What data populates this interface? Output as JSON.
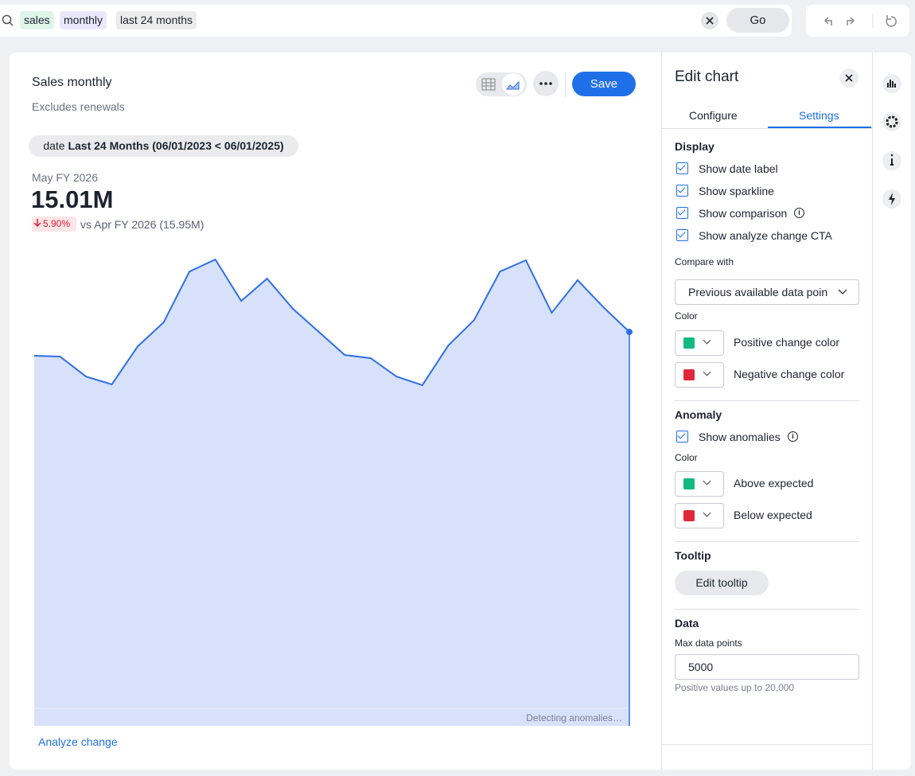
{
  "search": {
    "tokens": [
      "sales",
      "monthly",
      "last 24 months"
    ],
    "go": "Go"
  },
  "card": {
    "title": "Sales monthly",
    "subtitle": "Excludes renewals",
    "save": "Save",
    "filter": {
      "column": "date",
      "value": "Last 24 Months (06/01/2023 < 06/01/2025)"
    },
    "period": "May FY 2026",
    "value": "15.01M",
    "change": "5.90%",
    "comparison": "vs Apr FY 2026 (15.95M)",
    "status": "Detecting anomalies…",
    "analyze": "Analyze change"
  },
  "chart_data": {
    "type": "area",
    "color": "#2f6fe4",
    "fill": "#d7e1f9",
    "values": [
      14.1,
      14.07,
      13.31,
      13.01,
      14.46,
      15.37,
      17.31,
      17.77,
      16.19,
      17.04,
      15.89,
      15.01,
      14.13,
      14.01,
      13.31,
      12.98,
      14.49,
      15.46,
      17.31,
      17.74,
      15.74,
      16.98,
      15.95,
      15.01
    ]
  },
  "panel": {
    "title": "Edit chart",
    "tabs": [
      "Configure",
      "Settings"
    ],
    "display": {
      "heading": "Display",
      "options": [
        {
          "label": "Show date label",
          "checked": true,
          "info": false
        },
        {
          "label": "Show sparkline",
          "checked": true,
          "info": false
        },
        {
          "label": "Show comparison",
          "checked": true,
          "info": true
        },
        {
          "label": "Show analyze change CTA",
          "checked": true,
          "info": false
        }
      ],
      "compare_label": "Compare with",
      "compare_value": "Previous available data poin",
      "color_label": "Color",
      "colors": [
        {
          "label": "Positive change color",
          "color": "#12b981"
        },
        {
          "label": "Negative change color",
          "color": "#e0283a"
        }
      ]
    },
    "anomaly": {
      "heading": "Anomaly",
      "options": [
        {
          "label": "Show anomalies",
          "checked": true,
          "info": true
        }
      ],
      "color_label": "Color",
      "colors": [
        {
          "label": "Above expected",
          "color": "#12b981"
        },
        {
          "label": "Below expected",
          "color": "#e0283a"
        }
      ]
    },
    "tooltip": {
      "heading": "Tooltip",
      "button": "Edit tooltip"
    },
    "data": {
      "heading": "Data",
      "label": "Max data points",
      "value": "5000",
      "hint": "Positive values up to 20,000"
    }
  }
}
